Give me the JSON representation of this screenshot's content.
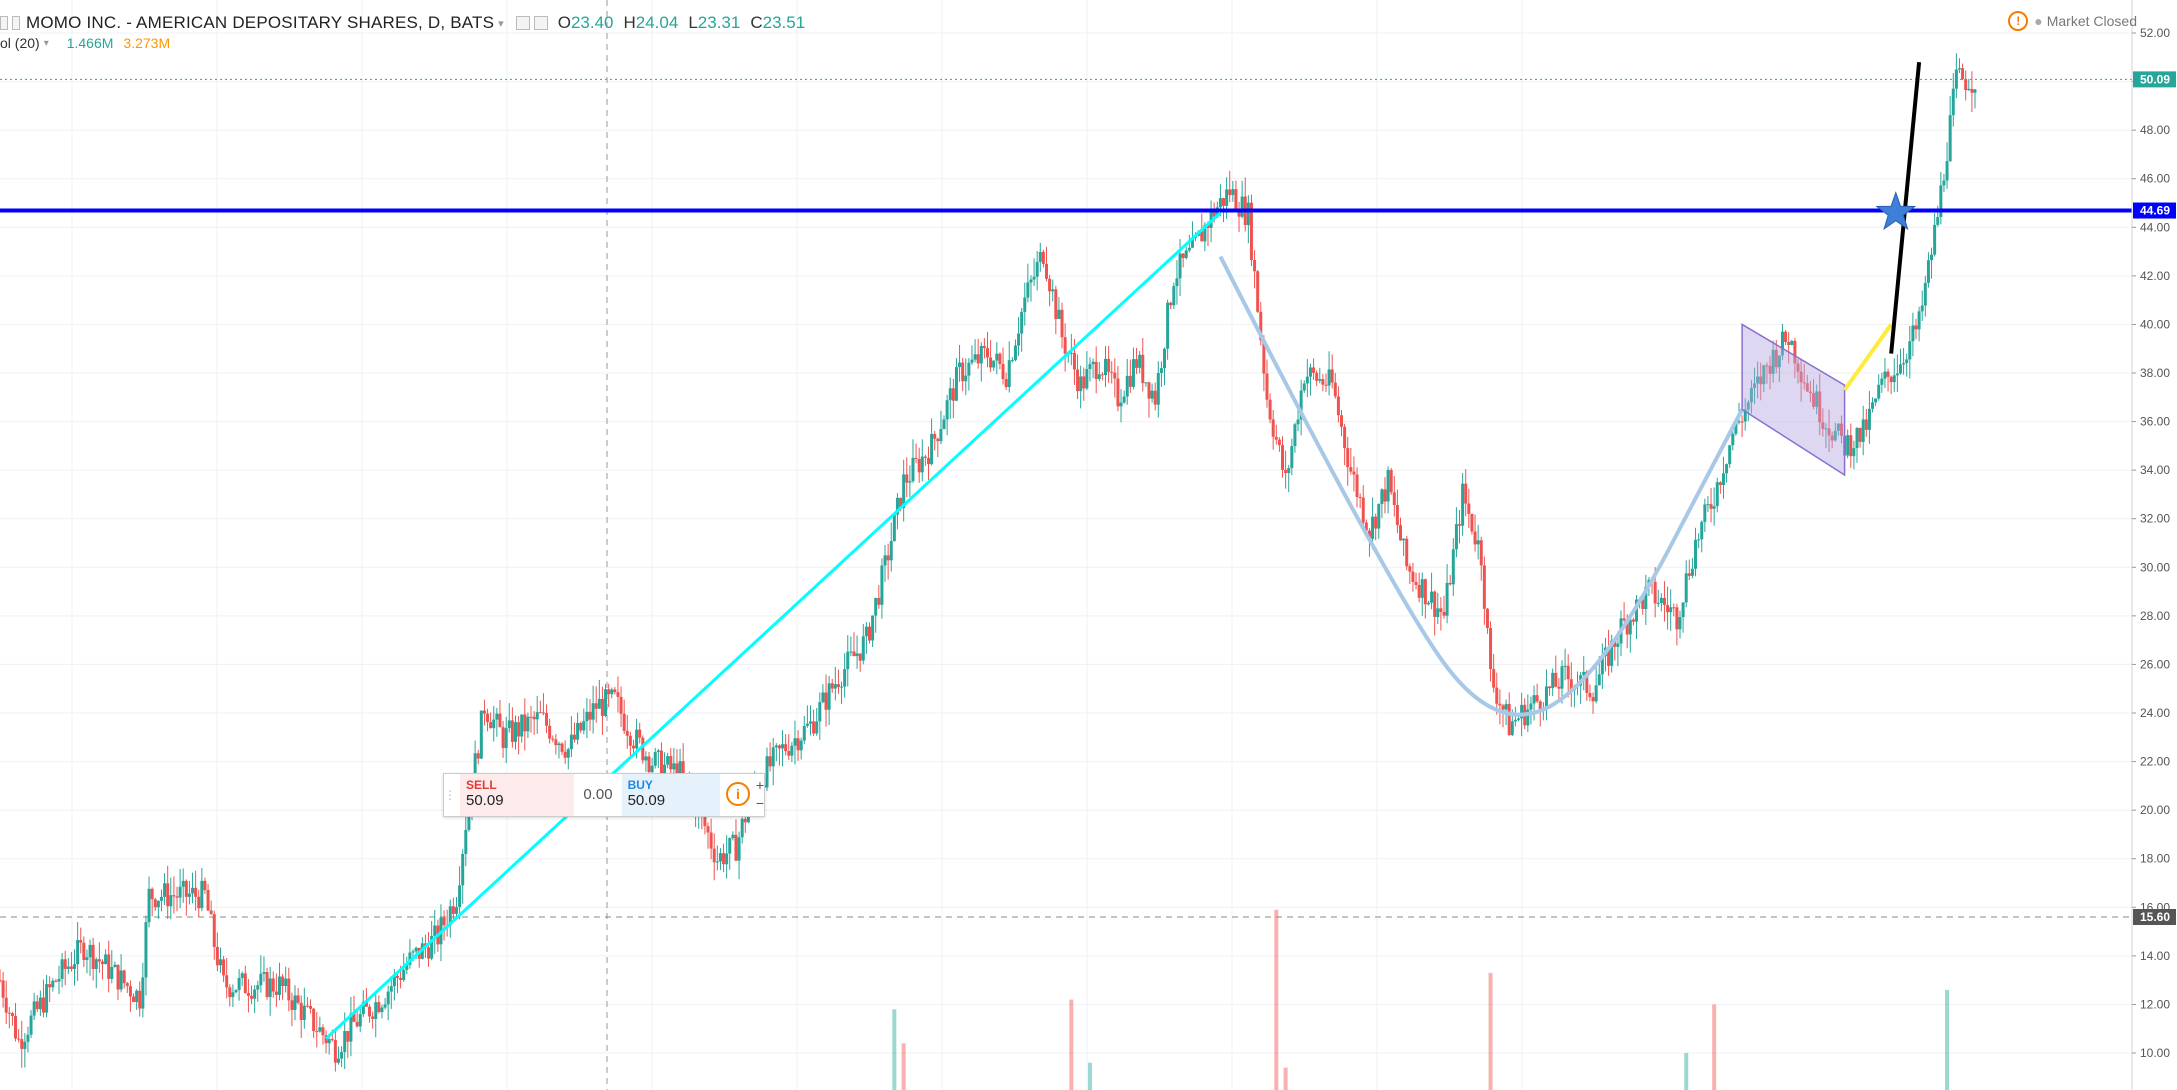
{
  "header": {
    "symbol": "MOMO INC. - AMERICAN DEPOSITARY SHARES, D, BATS",
    "o_label": "O",
    "o_value": "23.40",
    "h_label": "H",
    "h_value": "24.04",
    "l_label": "L",
    "l_value": "23.31",
    "c_label": "C",
    "c_value": "23.51"
  },
  "volume_legend": {
    "label": "ol (20)",
    "v1": "1.466M",
    "v2": "3.273M"
  },
  "market_status": "Market Closed",
  "trade_panel": {
    "sell_label": "SELL",
    "sell_price": "50.09",
    "spread": "0.00",
    "buy_label": "BUY",
    "buy_price": "50.09",
    "info_icon": "info-icon"
  },
  "colors": {
    "up": "#26a69a",
    "down": "#ef5350",
    "blue_line": "#0000ff",
    "cyan_trend": "#00ffff",
    "cup_curve": "#a8c8e8",
    "channel": "#b3a6e0",
    "black_line": "#000000",
    "yellow": "#ffeb3b"
  },
  "chart_data": {
    "type": "candlestick",
    "ylim": [
      9.0,
      53.0
    ],
    "y_ticks": [
      "52.00",
      "50.00",
      "48.00",
      "46.00",
      "44.00",
      "42.00",
      "40.00",
      "38.00",
      "36.00",
      "34.00",
      "32.00",
      "30.00",
      "28.00",
      "26.00",
      "24.00",
      "22.00",
      "20.00",
      "18.00",
      "16.00",
      "14.00",
      "12.00",
      "10.00"
    ],
    "price_labels": [
      {
        "value": 50.09,
        "text": "50.09",
        "color": "#26a69a"
      },
      {
        "value": 44.69,
        "text": "44.69",
        "color": "#0000ff"
      },
      {
        "value": 15.6,
        "text": "15.60",
        "color": "#555555"
      }
    ],
    "horizontal_line": 44.69,
    "dashed_line": 15.6,
    "last_price": 50.09,
    "price_path": [
      [
        0,
        13.0
      ],
      [
        2,
        10.5
      ],
      [
        6,
        13.0
      ],
      [
        9,
        14.4
      ],
      [
        13,
        13.0
      ],
      [
        15,
        12.3
      ],
      [
        16,
        16.5
      ],
      [
        22,
        16.5
      ],
      [
        23,
        14.5
      ],
      [
        24,
        12.8
      ],
      [
        30,
        12.8
      ],
      [
        33,
        11.5
      ],
      [
        36,
        10.2
      ],
      [
        38,
        11.2
      ],
      [
        41,
        12.3
      ],
      [
        44,
        13.8
      ],
      [
        47,
        14.8
      ],
      [
        49,
        16.5
      ],
      [
        50,
        19.5
      ],
      [
        52,
        24.3
      ],
      [
        54,
        23.0
      ],
      [
        58,
        23.8
      ],
      [
        61,
        22.5
      ],
      [
        64,
        24.3
      ],
      [
        66,
        24.5
      ],
      [
        68,
        23.0
      ],
      [
        70,
        22.0
      ],
      [
        73,
        21.5
      ],
      [
        75,
        20.0
      ],
      [
        77,
        18.0
      ],
      [
        79,
        18.5
      ],
      [
        81,
        21.0
      ],
      [
        84,
        22.5
      ],
      [
        87,
        23.5
      ],
      [
        90,
        25.5
      ],
      [
        93,
        27.0
      ],
      [
        95,
        30.0
      ],
      [
        97,
        33.5
      ],
      [
        100,
        35.0
      ],
      [
        103,
        38.0
      ],
      [
        106,
        38.8
      ],
      [
        108,
        38.0
      ],
      [
        110,
        41.0
      ],
      [
        112,
        43.0
      ],
      [
        114,
        39.5
      ],
      [
        116,
        37.5
      ],
      [
        118,
        38.5
      ],
      [
        120,
        37.0
      ],
      [
        122,
        38.5
      ],
      [
        124,
        37.0
      ],
      [
        126,
        42.0
      ],
      [
        128,
        43.0
      ],
      [
        130,
        44.5
      ],
      [
        132,
        45.5
      ],
      [
        134,
        44.5
      ],
      [
        136,
        37.0
      ],
      [
        138,
        33.5
      ],
      [
        140,
        38.0
      ],
      [
        143,
        37.5
      ],
      [
        145,
        34.0
      ],
      [
        147,
        31.5
      ],
      [
        149,
        33.5
      ],
      [
        151,
        30.0
      ],
      [
        153,
        29.0
      ],
      [
        155,
        28.0
      ],
      [
        157,
        33.0
      ],
      [
        159,
        30.5
      ],
      [
        160,
        25.5
      ],
      [
        162,
        23.5
      ],
      [
        165,
        24.5
      ],
      [
        168,
        25.5
      ],
      [
        171,
        25.0
      ],
      [
        174,
        27.5
      ],
      [
        177,
        29.0
      ],
      [
        180,
        28.0
      ],
      [
        182,
        31.0
      ],
      [
        184,
        33.0
      ],
      [
        186,
        35.5
      ],
      [
        188,
        37.0
      ],
      [
        190,
        38.5
      ],
      [
        192,
        39.5
      ],
      [
        194,
        37.5
      ],
      [
        196,
        36.0
      ],
      [
        198,
        35.0
      ],
      [
        200,
        35.5
      ],
      [
        202,
        37.5
      ],
      [
        204,
        38.5
      ],
      [
        206,
        40.0
      ],
      [
        208,
        44.5
      ],
      [
        210,
        50.09
      ]
    ],
    "volume_bars": [
      {
        "x": 96,
        "height": 11.8,
        "color": "#26a69a"
      },
      {
        "x": 97,
        "height": 10.4,
        "color": "#ef5350"
      },
      {
        "x": 115,
        "height": 12.2,
        "color": "#ef5350"
      },
      {
        "x": 117,
        "height": 9.6,
        "color": "#26a69a"
      },
      {
        "x": 137,
        "height": 15.9,
        "color": "#ef5350"
      },
      {
        "x": 138,
        "height": 9.4,
        "color": "#ef5350"
      },
      {
        "x": 160,
        "height": 13.3,
        "color": "#ef5350"
      },
      {
        "x": 181,
        "height": 10.0,
        "color": "#26a69a"
      },
      {
        "x": 184,
        "height": 12.0,
        "color": "#ef5350"
      },
      {
        "x": 209,
        "height": 12.6,
        "color": "#26a69a"
      }
    ],
    "drawings": {
      "cyan_trend": [
        [
          35,
          10.6
        ],
        [
          131,
          44.6
        ]
      ],
      "cup_curve": [
        [
          131,
          42.8
        ],
        [
          150,
          28.5
        ],
        [
          161,
          23.1
        ],
        [
          172,
          25.5
        ],
        [
          187,
          36.5
        ]
      ],
      "channel": [
        [
          187,
          40.0
        ],
        [
          198,
          37.5
        ],
        [
          198,
          33.8
        ],
        [
          187,
          36.5
        ]
      ],
      "yellow_line": [
        [
          198,
          37.3
        ],
        [
          203,
          40.0
        ]
      ],
      "black_line": [
        [
          203,
          38.8
        ],
        [
          206,
          50.8
        ]
      ],
      "star": [
        203.5,
        44.6
      ]
    },
    "x_count": 212
  }
}
